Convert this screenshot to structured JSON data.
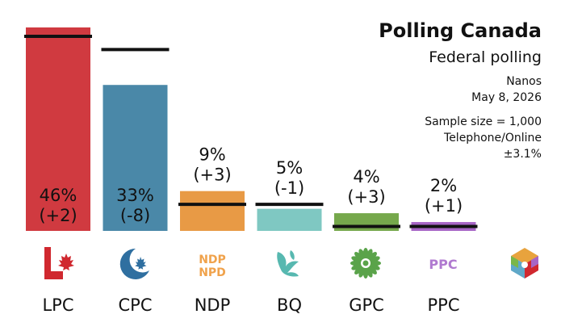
{
  "header": {
    "title": "Polling Canada",
    "subtitle": "Federal polling",
    "pollster": "Nanos",
    "date": "May 8, 2026",
    "sample": "Sample size = 1,000",
    "method": "Telephone/Online",
    "moe": "±3.1%"
  },
  "chart_data": {
    "type": "bar",
    "categories": [
      "LPC",
      "CPC",
      "NDP",
      "BQ",
      "GPC",
      "PPC"
    ],
    "values": [
      46,
      33,
      9,
      5,
      4,
      2
    ],
    "changes": [
      "(+2)",
      "(-8)",
      "(+3)",
      "(-1)",
      "(+3)",
      "(+1)"
    ],
    "previous": [
      44,
      41,
      6,
      6,
      1,
      1
    ],
    "value_labels": [
      "46%",
      "33%",
      "9%",
      "5%",
      "4%",
      "2%"
    ],
    "colors": [
      "#d03a40",
      "#4a88a8",
      "#e89a45",
      "#7fc8c2",
      "#76a84c",
      "#a765c6"
    ],
    "ylim": [
      0,
      46
    ],
    "logos": {
      "LPC": "maple-leaf-icon",
      "CPC": "crescent-maple-icon",
      "NDP_top": "NDP",
      "NDP_bottom": "NPD",
      "BQ": "fleur-icon",
      "GPC": "flower-icon",
      "PPC": "PPC",
      "extra": "multicolor-maple-icon"
    }
  }
}
